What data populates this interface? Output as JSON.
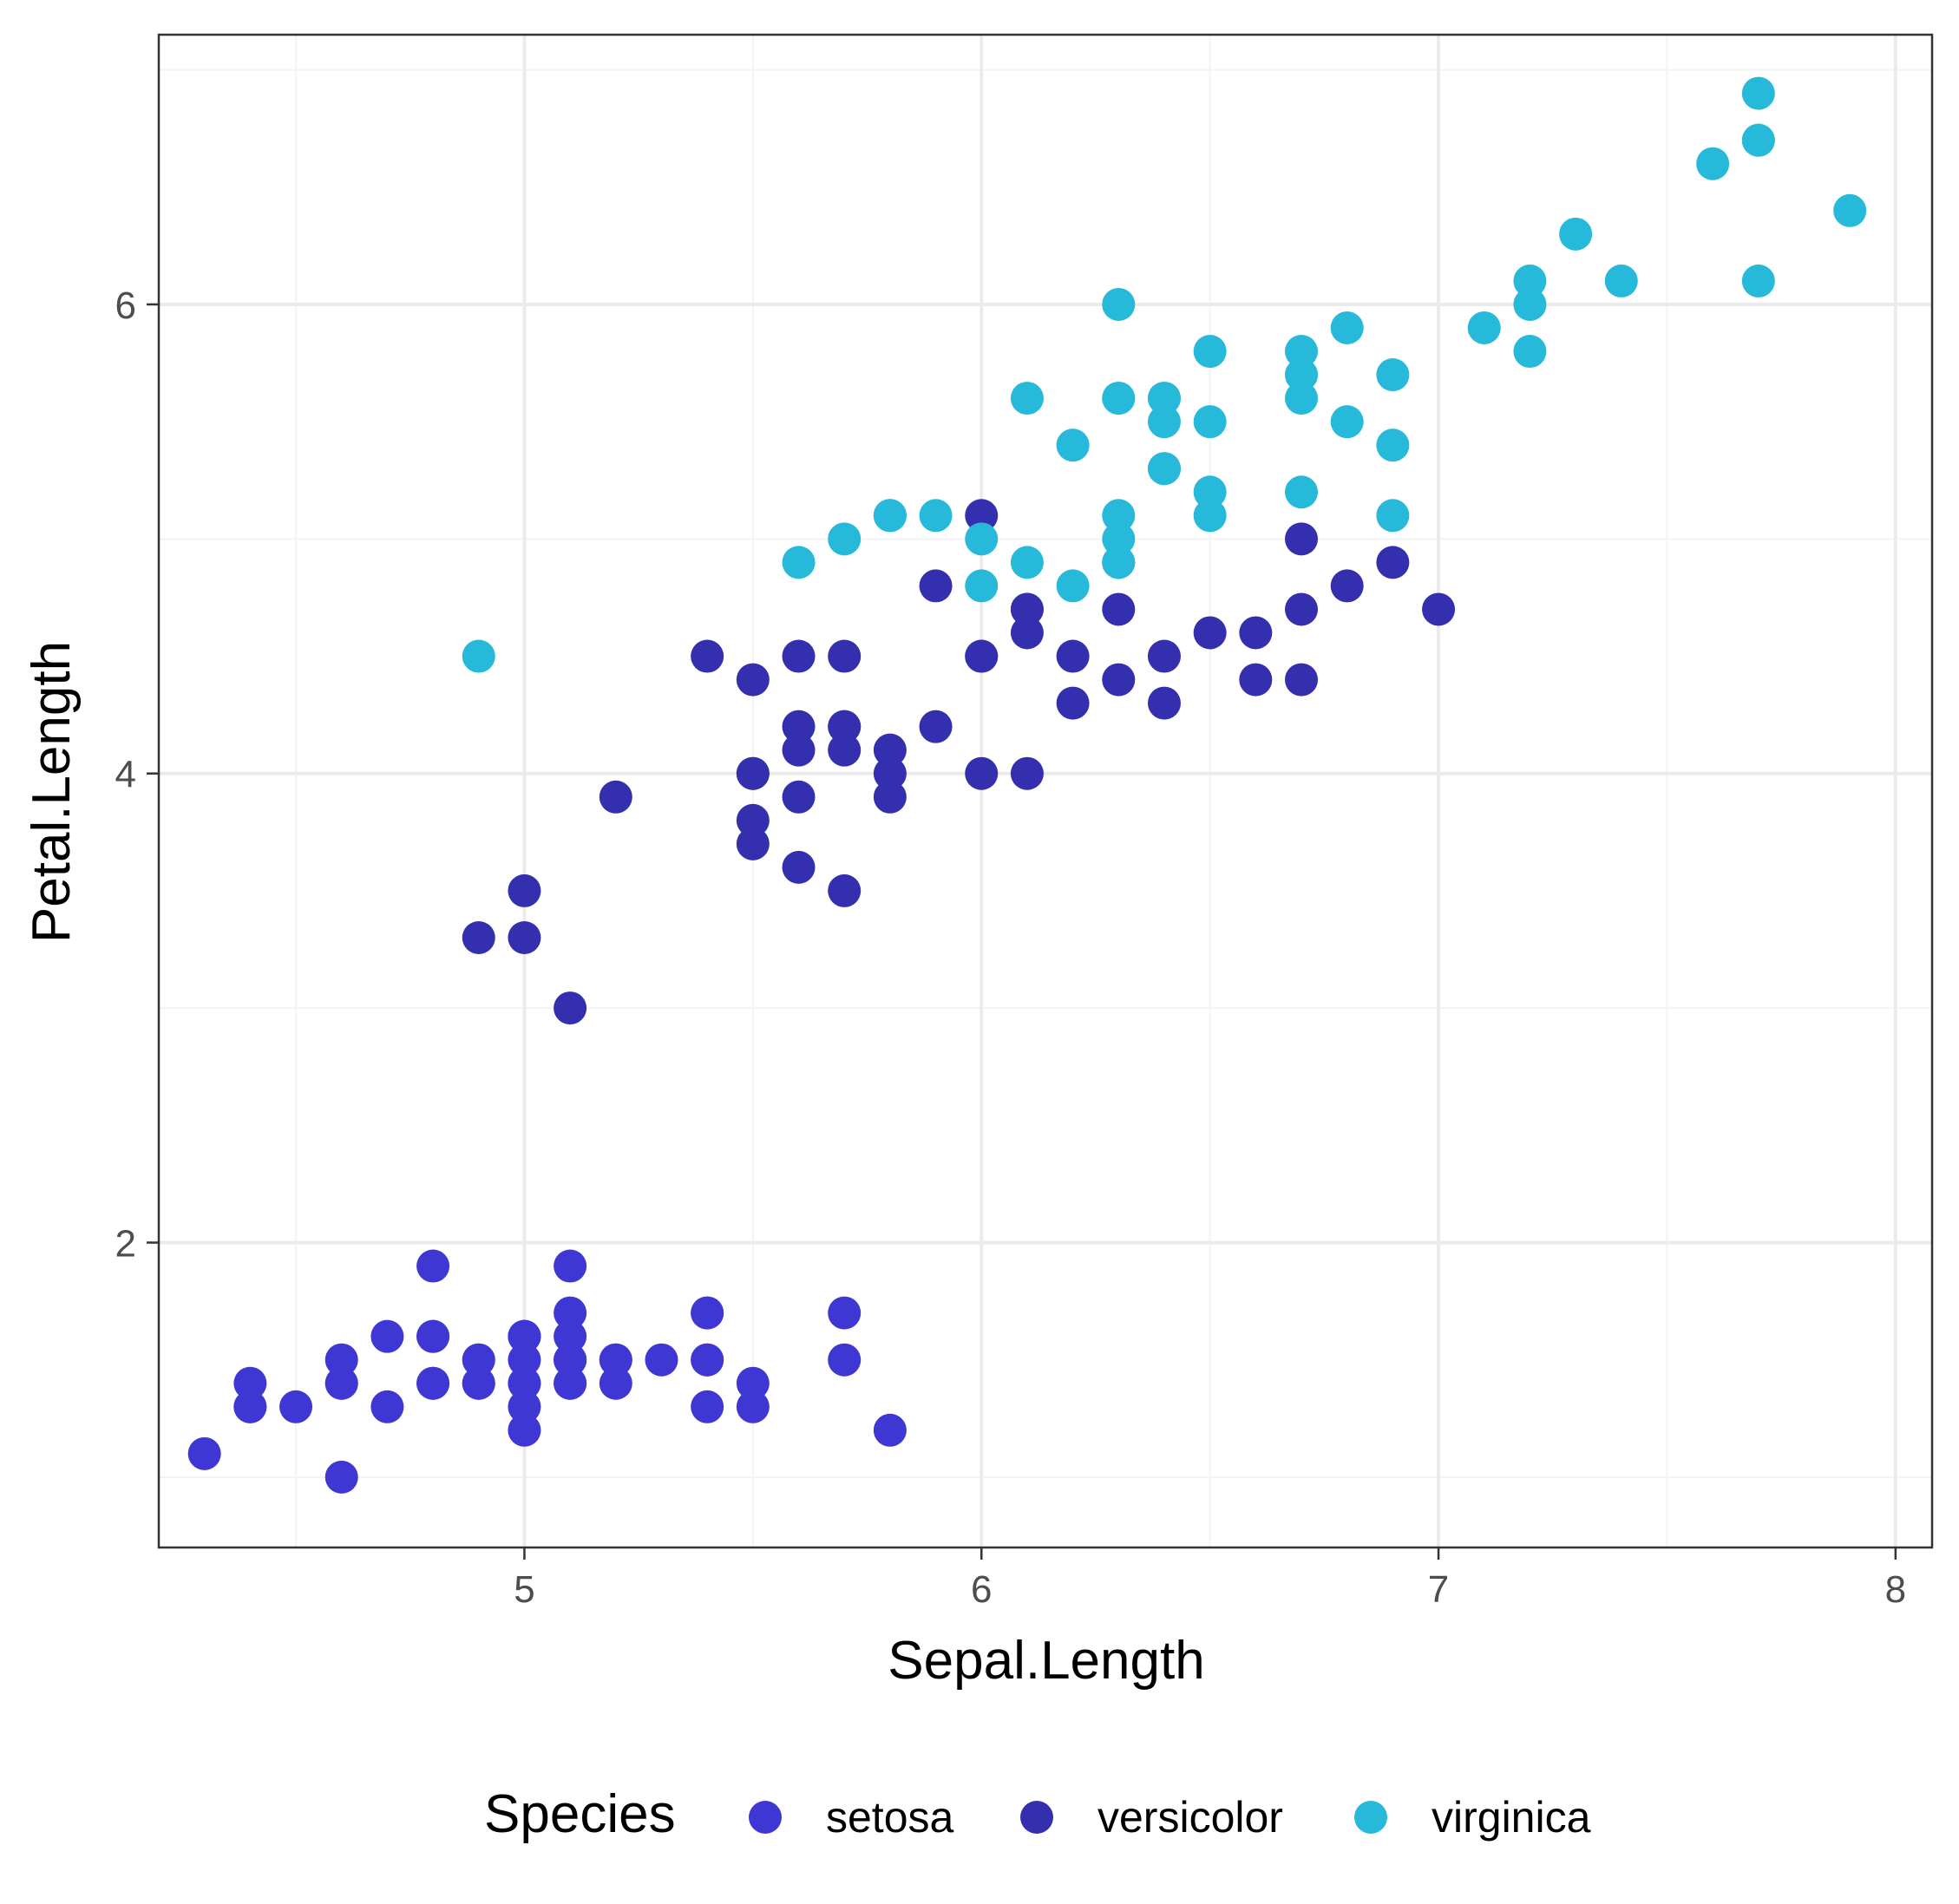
{
  "chart_data": {
    "type": "scatter",
    "title": "",
    "xlabel": "Sepal.Length",
    "ylabel": "Petal.Length",
    "xlim": [
      4.2,
      8.08
    ],
    "ylim": [
      0.7,
      7.15
    ],
    "xticks": [
      5,
      6,
      7,
      8
    ],
    "yticks": [
      2,
      4,
      6
    ],
    "xtick_labels": [
      "5",
      "6",
      "7",
      "8"
    ],
    "ytick_labels": [
      "2",
      "4",
      "6"
    ],
    "grid": true,
    "legend": {
      "title": "Species",
      "placement": "bottom"
    },
    "series": [
      {
        "name": "setosa",
        "color": "#3f37d4",
        "x": [
          5.1,
          4.9,
          4.7,
          4.6,
          5.0,
          5.4,
          4.6,
          5.0,
          4.4,
          4.9,
          5.4,
          4.8,
          4.8,
          4.3,
          5.8,
          5.7,
          5.4,
          5.1,
          5.7,
          5.1,
          5.4,
          5.1,
          4.6,
          5.1,
          4.8,
          5.0,
          5.0,
          5.2,
          5.2,
          4.7,
          4.8,
          5.4,
          5.2,
          5.5,
          4.9,
          5.0,
          5.5,
          4.9,
          4.4,
          5.1,
          5.0,
          4.5,
          4.4,
          5.0,
          5.1,
          4.8,
          5.1,
          4.6,
          5.3,
          5.0
        ],
        "y": [
          1.4,
          1.4,
          1.3,
          1.5,
          1.4,
          1.7,
          1.4,
          1.5,
          1.4,
          1.5,
          1.5,
          1.6,
          1.4,
          1.1,
          1.2,
          1.5,
          1.3,
          1.4,
          1.7,
          1.5,
          1.7,
          1.5,
          1.0,
          1.7,
          1.9,
          1.6,
          1.6,
          1.5,
          1.4,
          1.6,
          1.6,
          1.5,
          1.5,
          1.4,
          1.5,
          1.2,
          1.3,
          1.4,
          1.3,
          1.5,
          1.3,
          1.3,
          1.3,
          1.6,
          1.9,
          1.4,
          1.6,
          1.4,
          1.5,
          1.4
        ]
      },
      {
        "name": "versicolor",
        "color": "#342fae",
        "x": [
          7.0,
          6.4,
          6.9,
          5.5,
          6.5,
          5.7,
          6.3,
          4.9,
          6.6,
          5.2,
          5.0,
          5.9,
          6.0,
          6.1,
          5.6,
          6.7,
          5.6,
          5.8,
          6.2,
          5.6,
          5.9,
          6.1,
          6.3,
          6.1,
          6.4,
          6.6,
          6.8,
          6.7,
          6.0,
          5.7,
          5.5,
          5.5,
          5.8,
          6.0,
          5.4,
          6.0,
          6.7,
          6.3,
          5.6,
          5.5,
          5.5,
          6.1,
          5.8,
          5.0,
          5.6,
          5.7,
          5.7,
          6.2,
          5.1,
          5.7
        ],
        "y": [
          4.7,
          4.5,
          4.9,
          4.0,
          4.6,
          4.5,
          4.7,
          3.3,
          4.6,
          3.9,
          3.5,
          4.2,
          4.0,
          4.7,
          3.6,
          4.4,
          4.5,
          4.1,
          4.5,
          3.9,
          4.8,
          4.0,
          4.9,
          4.7,
          4.3,
          4.4,
          4.8,
          5.0,
          4.5,
          3.5,
          3.8,
          3.7,
          3.9,
          5.1,
          4.5,
          4.5,
          4.7,
          4.4,
          4.1,
          4.0,
          4.4,
          4.6,
          4.0,
          3.3,
          4.2,
          4.2,
          4.2,
          4.3,
          3.0,
          4.1
        ]
      },
      {
        "name": "virginica",
        "color": "#27b9d9",
        "x": [
          6.3,
          5.8,
          7.1,
          6.3,
          6.5,
          7.6,
          4.9,
          7.3,
          6.7,
          7.2,
          6.5,
          6.4,
          6.8,
          5.7,
          5.8,
          6.4,
          6.5,
          7.7,
          7.7,
          6.0,
          6.9,
          5.6,
          7.7,
          6.3,
          6.7,
          7.2,
          6.2,
          6.1,
          6.4,
          7.2,
          7.4,
          7.9,
          6.4,
          6.3,
          6.1,
          7.7,
          6.3,
          6.4,
          6.0,
          6.9,
          6.7,
          6.9,
          5.8,
          6.8,
          6.7,
          6.7,
          6.3,
          6.5,
          6.2,
          5.9
        ],
        "y": [
          6.0,
          5.1,
          5.9,
          5.6,
          5.8,
          6.6,
          4.5,
          6.3,
          5.8,
          6.1,
          5.1,
          5.3,
          5.5,
          5.0,
          5.1,
          5.3,
          5.5,
          6.7,
          6.9,
          5.0,
          5.7,
          4.9,
          6.7,
          4.9,
          5.7,
          6.0,
          4.8,
          4.9,
          5.6,
          5.8,
          6.1,
          6.4,
          5.6,
          5.1,
          5.6,
          6.1,
          5.6,
          5.5,
          4.8,
          5.4,
          5.6,
          5.1,
          5.1,
          5.9,
          5.7,
          5.2,
          5.0,
          5.2,
          5.4,
          5.1
        ]
      }
    ]
  },
  "colors": {
    "grid_major": "#ebebeb",
    "grid_minor": "#f3f3f3",
    "panel_border": "#333333",
    "tick_text": "#4d4d4d"
  }
}
